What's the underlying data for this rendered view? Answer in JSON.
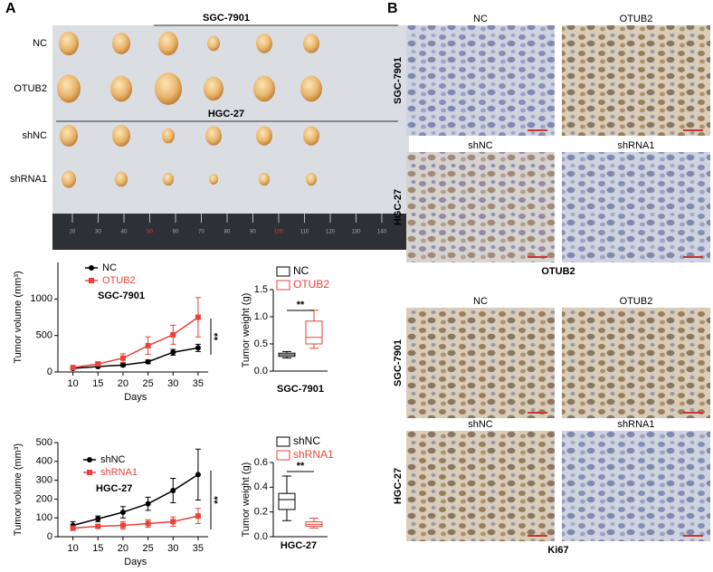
{
  "panel_labels": [
    "A",
    "B"
  ],
  "photo": {
    "groups": [
      "SGC-7901",
      "HGC-27"
    ],
    "rows": [
      "NC",
      "OTUB2",
      "shNC",
      "shRNA1"
    ],
    "ruler": [
      "20",
      "30",
      "40",
      "50",
      "60",
      "70",
      "80",
      "90",
      "100",
      "110",
      "120",
      "130",
      "140"
    ]
  },
  "ihc": {
    "row_labels": [
      "SGC-7901",
      "HGC-27"
    ],
    "blocks": [
      {
        "columns": [
          [
            "NC",
            "OTUB2"
          ],
          [
            "shNC",
            "shRNA1"
          ]
        ],
        "stain": "OTUB2"
      },
      {
        "columns": [
          [
            "NC",
            "OTUB2"
          ],
          [
            "shNC",
            "shRNA1"
          ]
        ],
        "stain": "Ki67"
      }
    ]
  },
  "chart_data": [
    {
      "type": "line",
      "title": "SGC-7901",
      "xlabel": "Days",
      "ylabel": "Tumor volume (mm³)",
      "annotation": "**",
      "x": [
        10,
        15,
        20,
        25,
        30,
        35
      ],
      "xlim": [
        7,
        37
      ],
      "xticks": [
        10,
        15,
        20,
        25,
        30,
        35
      ],
      "ylim": [
        0,
        1500
      ],
      "yticks": [
        0,
        500,
        1000
      ],
      "series": [
        {
          "name": "NC",
          "color": "#000000",
          "values": [
            50,
            75,
            95,
            140,
            270,
            330
          ],
          "errors": [
            10,
            15,
            20,
            25,
            40,
            50
          ]
        },
        {
          "name": "OTUB2",
          "color": "#e8423a",
          "values": [
            60,
            110,
            190,
            360,
            510,
            750
          ],
          "errors": [
            15,
            25,
            60,
            120,
            130,
            270
          ]
        }
      ]
    },
    {
      "type": "box",
      "title": "SGC-7901",
      "ylabel": "Tumor weight (g)",
      "annotation": "**",
      "ylim": [
        0,
        1.5
      ],
      "yticks": [
        {
          "value": 0,
          "label": "0.0"
        },
        {
          "value": 0.5,
          "label": "0.5"
        },
        {
          "value": 1,
          "label": "1.0"
        },
        {
          "value": 1.5,
          "label": "1.5"
        }
      ],
      "series": [
        {
          "name": "NC",
          "color": "#000000",
          "min": 0.24,
          "q1": 0.27,
          "median": 0.3,
          "q3": 0.33,
          "max": 0.36
        },
        {
          "name": "OTUB2",
          "color": "#e8423a",
          "min": 0.42,
          "q1": 0.5,
          "median": 0.62,
          "q3": 0.92,
          "max": 1.12
        }
      ]
    },
    {
      "type": "line",
      "title": "HGC-27",
      "xlabel": "Days",
      "ylabel": "Tumor volume (mm³)",
      "annotation": "**",
      "x": [
        10,
        15,
        20,
        25,
        30,
        35
      ],
      "xlim": [
        7,
        37
      ],
      "xticks": [
        10,
        15,
        20,
        25,
        30,
        35
      ],
      "ylim": [
        0,
        500
      ],
      "yticks": [
        0,
        100,
        200,
        300,
        400,
        500
      ],
      "series": [
        {
          "name": "shNC",
          "color": "#000000",
          "values": [
            60,
            95,
            130,
            175,
            245,
            330
          ],
          "errors": [
            20,
            15,
            30,
            35,
            65,
            135
          ]
        },
        {
          "name": "shRNA1",
          "color": "#e8423a",
          "values": [
            45,
            55,
            60,
            70,
            80,
            110
          ],
          "errors": [
            10,
            12,
            20,
            20,
            25,
            40
          ]
        }
      ]
    },
    {
      "type": "box",
      "title": "HGC-27",
      "ylabel": "Tumor weight (g)",
      "annotation": "**",
      "ylim": [
        0,
        0.6
      ],
      "yticks": [
        {
          "value": 0,
          "label": "0.0"
        },
        {
          "value": 0.2,
          "label": "0.2"
        },
        {
          "value": 0.4,
          "label": "0.4"
        },
        {
          "value": 0.6,
          "label": "0.6"
        }
      ],
      "series": [
        {
          "name": "shNC",
          "color": "#000000",
          "min": 0.13,
          "q1": 0.22,
          "median": 0.3,
          "q3": 0.35,
          "max": 0.49
        },
        {
          "name": "shRNA1",
          "color": "#e8423a",
          "min": 0.07,
          "q1": 0.085,
          "median": 0.1,
          "q3": 0.12,
          "max": 0.15
        }
      ]
    }
  ]
}
